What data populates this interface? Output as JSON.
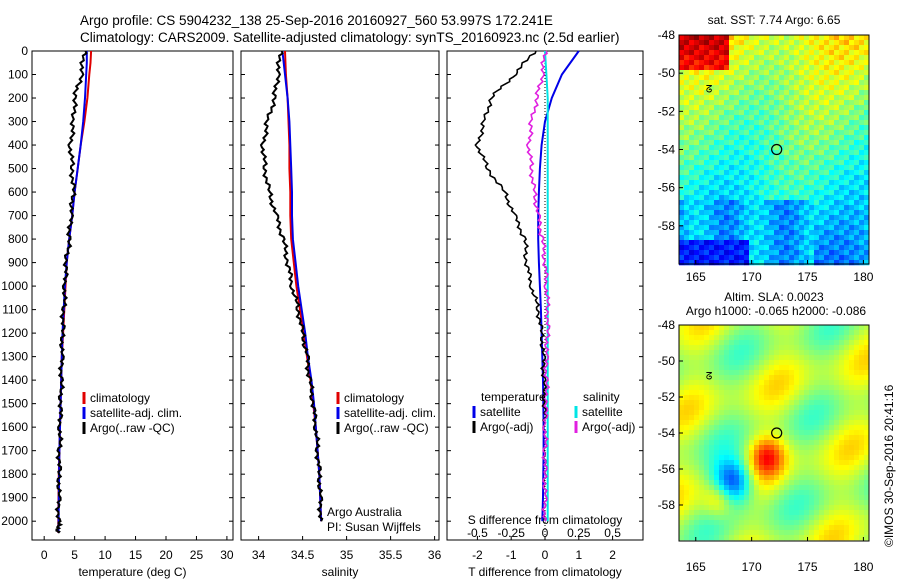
{
  "header": {
    "line1": "Argo profile: CS 5904232_138 25-Sep-2016 20160927_560 53.997S 172.241E",
    "line2": "Climatology: CARS2009. Satellite-adjusted climatology: synTS_20160923.nc (2.5d earlier)"
  },
  "colors": {
    "climatology": "#e00000",
    "satellite": "#0000e8",
    "argo": "#000000",
    "sat_salinity": "#00e5e5",
    "argo_salinity": "#e020e0"
  },
  "depth_axis": {
    "ticks": [
      "0",
      "100",
      "200",
      "300",
      "400",
      "500",
      "600",
      "700",
      "800",
      "900",
      "1000",
      "1100",
      "1200",
      "1300",
      "1400",
      "1500",
      "1600",
      "1700",
      "1800",
      "1900",
      "2000"
    ]
  },
  "temp_panel": {
    "xlabel": "temperature (deg C)",
    "xticks": [
      "0",
      "5",
      "10",
      "15",
      "20",
      "25",
      "30"
    ],
    "legend": [
      "climatology",
      "satellite-adj. clim.",
      "Argo(..raw -QC)"
    ]
  },
  "sal_panel": {
    "xlabel": "salinity",
    "xticks": [
      "34",
      "34.5",
      "35",
      "35.5",
      "36"
    ],
    "legend": [
      "climatology",
      "satellite-adj. clim.",
      "Argo(..raw -QC)"
    ],
    "note1": "Argo Australia",
    "note2": "PI: Susan Wijffels"
  },
  "diff_panel": {
    "xlabel": "T difference from climatology",
    "toplabel": "S difference from climatology",
    "xticks": [
      "-2",
      "-1",
      "0",
      "1",
      "2"
    ],
    "sticks": [
      "-0.5",
      "-0.25",
      "0",
      "0.25",
      "0.5"
    ],
    "legend_t_title": "temperature",
    "legend_s_title": "salinity",
    "legend_t": [
      "satellite",
      "Argo(-adj)"
    ],
    "legend_s": [
      "satellite",
      "Argo(-adj)"
    ]
  },
  "map_sst": {
    "title": "sat. SST: 7.74 Argo: 6.65",
    "yticks": [
      "-48",
      "-50",
      "-52",
      "-54",
      "-56",
      "-58"
    ],
    "xticks": [
      "165",
      "170",
      "175",
      "180"
    ]
  },
  "map_sla": {
    "title1": "Altim. SLA: 0.0023",
    "title2": "Argo h1000: -0.065 h2000: -0.086",
    "yticks": [
      "-48",
      "-50",
      "-52",
      "-54",
      "-56",
      "-58"
    ],
    "xticks": [
      "165",
      "170",
      "175",
      "180"
    ]
  },
  "credit": "©IMOS 30-Sep-2016 20:41:16",
  "chart_data": [
    {
      "type": "line",
      "xlabel": "temperature (deg C)",
      "ylabel": "",
      "xlim": [
        -2,
        31
      ],
      "ylim": [
        2080,
        0
      ],
      "series": [
        {
          "name": "climatology",
          "x": [
            7.7,
            7.6,
            7.4,
            7.1,
            6.6,
            6.0,
            5.5,
            5.0,
            4.6,
            4.1,
            3.7,
            3.5,
            3.3,
            3.1,
            2.9,
            2.8,
            2.7,
            2.6,
            2.5,
            2.4,
            2.35,
            2.3
          ],
          "depth": [
            0,
            50,
            100,
            200,
            300,
            400,
            500,
            600,
            700,
            800,
            900,
            1000,
            1100,
            1200,
            1300,
            1400,
            1500,
            1600,
            1700,
            1800,
            1900,
            2050
          ]
        },
        {
          "name": "satellite-adj. clim.",
          "x": [
            7.0,
            7.0,
            6.9,
            6.7,
            6.4,
            6.0,
            5.5,
            5.0,
            4.6,
            4.1,
            3.7,
            3.4,
            3.2,
            3.0,
            2.9,
            2.8,
            2.7,
            2.6,
            2.5,
            2.45,
            2.4,
            2.35
          ],
          "depth": [
            0,
            50,
            100,
            200,
            300,
            400,
            500,
            600,
            700,
            800,
            900,
            1000,
            1100,
            1200,
            1300,
            1400,
            1500,
            1600,
            1700,
            1800,
            1900,
            2050
          ]
        },
        {
          "name": "Argo(..raw -QC)",
          "x": [
            6.6,
            6.1,
            5.0,
            4.8,
            4.3,
            4.6,
            4.8,
            4.4,
            4.1,
            3.6,
            3.4,
            3.2,
            3.0,
            2.9,
            2.8,
            2.7,
            2.6,
            2.5,
            2.45,
            2.4,
            2.35,
            2.3
          ],
          "depth": [
            0,
            100,
            200,
            300,
            400,
            500,
            600,
            700,
            800,
            900,
            1000,
            1100,
            1200,
            1300,
            1400,
            1500,
            1600,
            1700,
            1800,
            1900,
            2000,
            2050
          ]
        }
      ]
    },
    {
      "type": "line",
      "xlabel": "salinity",
      "ylabel": "",
      "xlim": [
        33.8,
        36.05
      ],
      "ylim": [
        2080,
        0
      ],
      "series": [
        {
          "name": "climatology",
          "x": [
            34.3,
            34.31,
            34.33,
            34.34,
            34.35,
            34.35,
            34.36,
            34.36,
            34.37,
            34.4,
            34.43,
            34.47,
            34.51,
            34.55,
            34.59,
            34.62,
            34.65,
            34.67,
            34.69,
            34.7,
            34.71
          ],
          "depth": [
            0,
            100,
            200,
            300,
            400,
            500,
            600,
            700,
            800,
            900,
            1000,
            1100,
            1200,
            1300,
            1400,
            1500,
            1600,
            1700,
            1800,
            1900,
            2000
          ]
        },
        {
          "name": "satellite-adj. clim.",
          "x": [
            34.27,
            34.3,
            34.33,
            34.35,
            34.36,
            34.37,
            34.38,
            34.38,
            34.39,
            34.42,
            34.45,
            34.49,
            34.53,
            34.56,
            34.6,
            34.63,
            34.65,
            34.67,
            34.69,
            34.7,
            34.71
          ],
          "depth": [
            0,
            100,
            200,
            300,
            400,
            500,
            600,
            700,
            800,
            900,
            1000,
            1100,
            1200,
            1300,
            1400,
            1500,
            1600,
            1700,
            1800,
            1900,
            2000
          ]
        },
        {
          "name": "Argo(..raw -QC)",
          "x": [
            34.25,
            34.22,
            34.18,
            34.1,
            34.05,
            34.07,
            34.12,
            34.2,
            34.28,
            34.33,
            34.38,
            34.45,
            34.5,
            34.55,
            34.58,
            34.62,
            34.65,
            34.67,
            34.69,
            34.7,
            34.71
          ],
          "depth": [
            0,
            100,
            200,
            300,
            400,
            500,
            600,
            700,
            800,
            900,
            1000,
            1100,
            1200,
            1300,
            1400,
            1500,
            1600,
            1700,
            1800,
            1900,
            2000
          ]
        }
      ]
    },
    {
      "type": "line",
      "xlabel": "T difference from climatology",
      "ylabel": "",
      "xlim": [
        -2.9,
        2.9
      ],
      "ylim": [
        2080,
        0
      ],
      "series": [
        {
          "name": "satellite",
          "x": [
            1.0,
            0.5,
            0.2,
            0.0,
            -0.1,
            -0.15,
            -0.18,
            -0.2,
            -0.2,
            -0.18,
            -0.15,
            -0.12,
            -0.1,
            -0.08,
            -0.06,
            -0.05,
            -0.04,
            -0.04,
            -0.05,
            -0.06,
            -0.08
          ],
          "depth": [
            0,
            100,
            200,
            300,
            400,
            500,
            600,
            700,
            800,
            900,
            1000,
            1100,
            1200,
            1300,
            1400,
            1500,
            1600,
            1700,
            1800,
            1900,
            2000
          ]
        },
        {
          "name": "Argo(-adj)",
          "x": [
            -0.3,
            -0.9,
            -1.6,
            -1.8,
            -2.0,
            -1.7,
            -1.2,
            -0.9,
            -0.6,
            -0.55,
            -0.4,
            -0.2,
            -0.1,
            -0.05,
            -0.03,
            -0.02,
            0.0,
            0.01,
            0.01,
            0.0,
            0.0
          ],
          "depth": [
            0,
            100,
            200,
            300,
            400,
            500,
            600,
            700,
            800,
            900,
            1000,
            1100,
            1200,
            1300,
            1400,
            1500,
            1600,
            1700,
            1800,
            1900,
            2000
          ]
        }
      ]
    },
    {
      "type": "line",
      "xlabel": "S difference from climatology",
      "ylabel": "",
      "xlim": [
        -0.725,
        0.725
      ],
      "ylim": [
        2080,
        0
      ],
      "series": [
        {
          "name": "satellite",
          "x": [
            0.0,
            0.01,
            0.02,
            0.02,
            0.02,
            0.02,
            0.02,
            0.02,
            0.02,
            0.02,
            0.02,
            0.02,
            0.02,
            0.02,
            0.02,
            0.02,
            0.02,
            0.02,
            0.02,
            0.02,
            0.02
          ],
          "depth": [
            0,
            100,
            200,
            300,
            400,
            500,
            600,
            700,
            800,
            900,
            1000,
            1100,
            1200,
            1300,
            1400,
            1500,
            1600,
            1700,
            1800,
            1900,
            2000
          ]
        },
        {
          "name": "Argo(-adj)",
          "x": [
            0.0,
            -0.02,
            -0.06,
            -0.1,
            -0.12,
            -0.1,
            -0.08,
            -0.05,
            -0.02,
            0.0,
            0.01,
            0.02,
            0.02,
            0.01,
            0.01,
            0.01,
            0.0,
            0.0,
            0.0,
            0.0,
            0.0
          ],
          "depth": [
            0,
            100,
            200,
            300,
            400,
            500,
            600,
            700,
            800,
            900,
            1000,
            1100,
            1200,
            1300,
            1400,
            1500,
            1600,
            1700,
            1800,
            1900,
            2000
          ]
        }
      ]
    },
    {
      "type": "heatmap",
      "title": "sat. SST: 7.74 Argo: 6.65",
      "xlim": [
        163.5,
        180.5
      ],
      "ylim": [
        -60,
        -48
      ],
      "argo_position": [
        172.24,
        -54.0
      ]
    },
    {
      "type": "heatmap",
      "title": "Altim. SLA: 0.0023",
      "xlim": [
        163.5,
        180.5
      ],
      "ylim": [
        -60,
        -48
      ],
      "argo_position": [
        172.24,
        -54.0
      ]
    }
  ]
}
